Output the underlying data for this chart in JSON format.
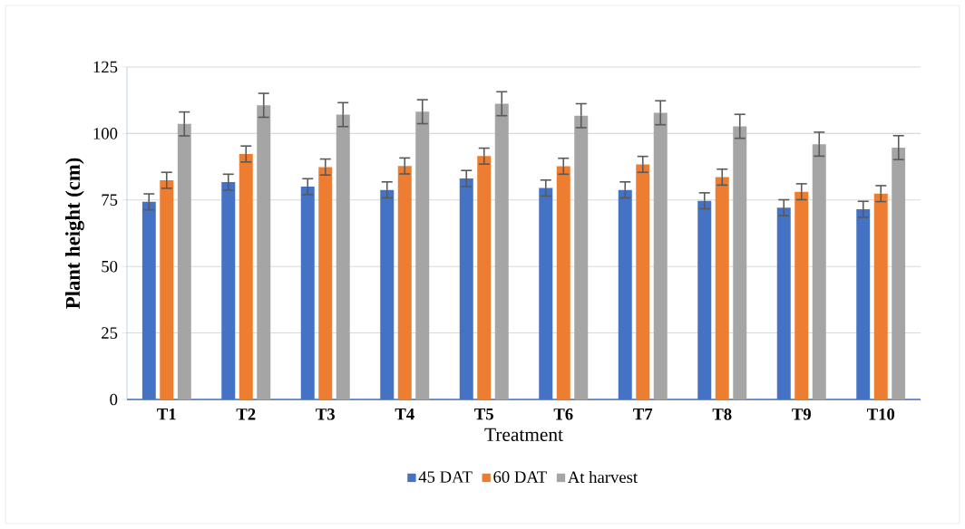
{
  "chart_data": {
    "type": "bar",
    "xlabel": "Treatment",
    "ylabel": "Plant height (cm)",
    "categories": [
      "T1",
      "T2",
      "T3",
      "T4",
      "T5",
      "T6",
      "T7",
      "T8",
      "T9",
      "T10"
    ],
    "series": [
      {
        "name": "45 DAT",
        "color": "#4472c4",
        "values": [
          74.3,
          81.7,
          80.0,
          78.8,
          83.1,
          79.5,
          78.8,
          74.7,
          72.1,
          71.5
        ],
        "errors": [
          3,
          3,
          3,
          3,
          3,
          3,
          3,
          3,
          3,
          3
        ]
      },
      {
        "name": "60 DAT",
        "color": "#ed7d31",
        "values": [
          82.4,
          92.3,
          87.4,
          87.8,
          91.5,
          87.7,
          88.4,
          83.6,
          78.1,
          77.4
        ],
        "errors": [
          3,
          3,
          3,
          3,
          3,
          3,
          3,
          3,
          3,
          3
        ]
      },
      {
        "name": "At harvest",
        "color": "#a5a5a5",
        "values": [
          103.6,
          110.6,
          107.1,
          108.2,
          111.2,
          106.7,
          107.8,
          102.7,
          96.0,
          94.7
        ],
        "errors": [
          4.5,
          4.5,
          4.5,
          4.5,
          4.5,
          4.5,
          4.5,
          4.5,
          4.5,
          4.5
        ]
      }
    ],
    "ylim": [
      0,
      125
    ],
    "yticks": [
      0,
      25,
      50,
      75,
      100,
      125
    ],
    "grid": "y",
    "legend": "bottom"
  }
}
